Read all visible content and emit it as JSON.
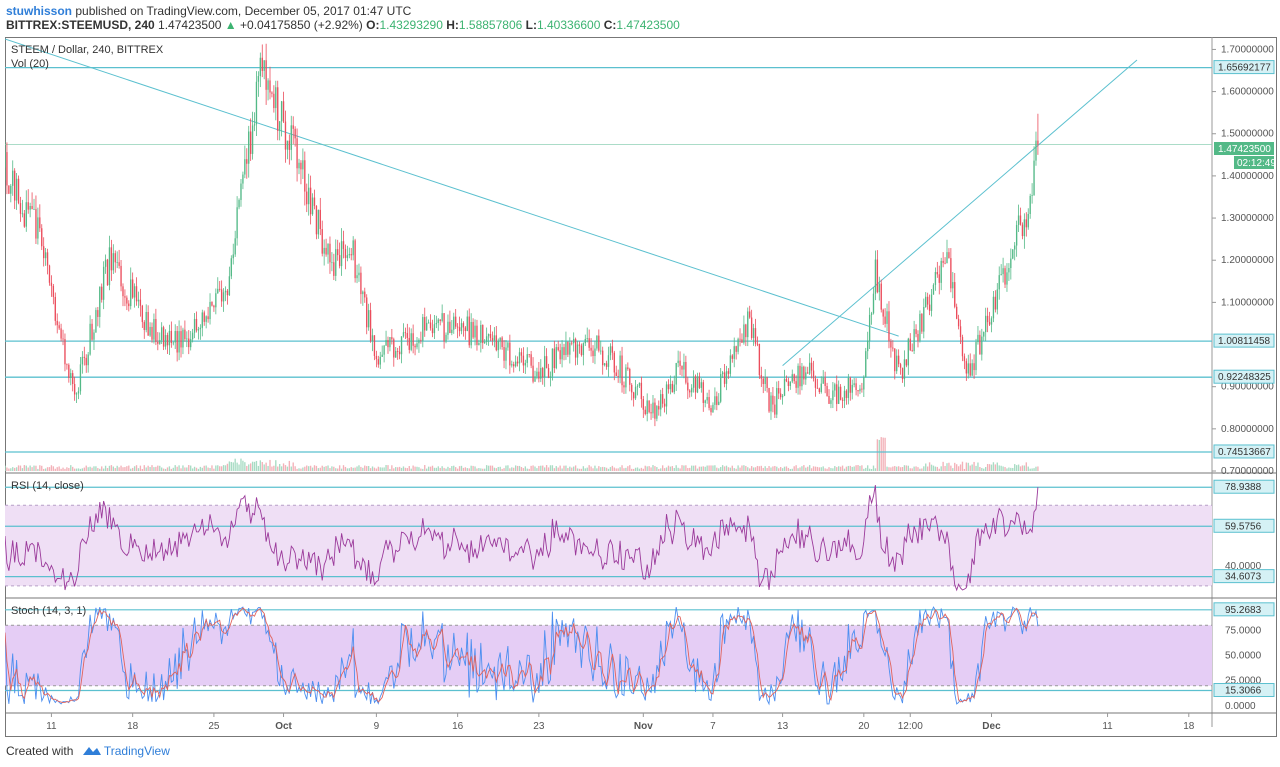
{
  "header": {
    "author": "stuwhisson",
    "published": "published on TradingView.com, December 05, 2017 01:47 UTC",
    "symbol": "BITTREX:STEEMUSD, 240",
    "last": "1.47423500",
    "change_arrow": "▲",
    "change": "+0.04175850 (+2.92%)",
    "o_label": "O:",
    "o": "1.43293290",
    "h_label": "H:",
    "h": "1.58857806",
    "l_label": "L:",
    "l": "1.40336600",
    "c_label": "C:",
    "c": "1.47423500"
  },
  "price_pane": {
    "title": "STEEM / Dollar, 240, BITTREX",
    "vol_label": "Vol (20)",
    "current_price": "1.47423500",
    "countdown": "02:12:49"
  },
  "rsi_pane": {
    "title": "RSI (14, close)"
  },
  "stoch_pane": {
    "title": "Stoch (14, 3, 1)"
  },
  "colors": {
    "up": "#53b987",
    "down": "#eb4d5c",
    "line": "#5bc0cf",
    "rsi": "#9b3a9b",
    "rsi_band": "#efdff5",
    "stoch_band": "#e5cdf5",
    "stoch_k": "#4d8ff0",
    "stoch_d": "#e0635d"
  },
  "footer": {
    "created_with": "Created with",
    "brand": "TradingView"
  },
  "chart_data": [
    {
      "type": "candlestick",
      "title": "STEEM / Dollar, 240, BITTREX",
      "x_tick_labels": [
        "11",
        "18",
        "25",
        "Oct",
        "9",
        "16",
        "23",
        "Nov",
        "7",
        "13",
        "20",
        "12:00",
        "Dec",
        "11",
        "18"
      ],
      "y_tick_labels": [
        "1.70000000",
        "1.60000000",
        "1.50000000",
        "1.40000000",
        "1.30000000",
        "1.20000000",
        "1.10000000",
        "0.90000000",
        "0.80000000",
        "0.70000000"
      ],
      "ylim": [
        0.7,
        1.72
      ],
      "horizontal_levels": [
        {
          "value": 1.65692177,
          "label": "1.65692177"
        },
        {
          "value": 1.00811458,
          "label": "1.00811458"
        },
        {
          "value": 0.92248325,
          "label": "0.92248325"
        },
        {
          "value": 0.74513667,
          "label": "0.74513667"
        }
      ],
      "last_price": {
        "value": 1.474235,
        "label": "1.47423500"
      },
      "anchors": [
        {
          "date": "2017-09-07",
          "price": 1.42
        },
        {
          "date": "2017-09-10",
          "price": 1.25
        },
        {
          "date": "2017-09-13",
          "price": 0.87
        },
        {
          "date": "2017-09-16",
          "price": 1.2
        },
        {
          "date": "2017-09-20",
          "price": 1.02
        },
        {
          "date": "2017-09-22",
          "price": 1.0
        },
        {
          "date": "2017-09-26",
          "price": 1.12
        },
        {
          "date": "2017-09-29",
          "price": 1.65
        },
        {
          "date": "2017-10-02",
          "price": 1.45
        },
        {
          "date": "2017-10-05",
          "price": 1.2
        },
        {
          "date": "2017-10-07",
          "price": 1.22
        },
        {
          "date": "2017-10-09",
          "price": 0.97
        },
        {
          "date": "2017-10-13",
          "price": 1.03
        },
        {
          "date": "2017-10-16",
          "price": 1.05
        },
        {
          "date": "2017-10-19",
          "price": 1.0
        },
        {
          "date": "2017-10-23",
          "price": 0.93
        },
        {
          "date": "2017-10-26",
          "price": 1.0
        },
        {
          "date": "2017-10-29",
          "price": 0.98
        },
        {
          "date": "2017-11-02",
          "price": 0.83
        },
        {
          "date": "2017-11-04",
          "price": 0.94
        },
        {
          "date": "2017-11-07",
          "price": 0.86
        },
        {
          "date": "2017-11-10",
          "price": 1.06
        },
        {
          "date": "2017-11-12",
          "price": 0.85
        },
        {
          "date": "2017-11-15",
          "price": 0.95
        },
        {
          "date": "2017-11-17",
          "price": 0.88
        },
        {
          "date": "2017-11-20",
          "price": 0.91
        },
        {
          "date": "2017-11-21",
          "price": 1.17
        },
        {
          "date": "2017-11-23",
          "price": 0.93
        },
        {
          "date": "2017-11-25",
          "price": 1.05
        },
        {
          "date": "2017-11-27",
          "price": 1.22
        },
        {
          "date": "2017-11-29",
          "price": 0.93
        },
        {
          "date": "2017-12-02",
          "price": 1.15
        },
        {
          "date": "2017-12-04",
          "price": 1.32
        },
        {
          "date": "2017-12-05",
          "price": 1.47
        }
      ]
    },
    {
      "type": "line",
      "title": "RSI (14, close)",
      "y_tick_labels": [
        "40.0000"
      ],
      "ylim": [
        25,
        85
      ],
      "levels": [
        {
          "value": 78.9388,
          "label": "78.9388"
        },
        {
          "value": 59.5756,
          "label": "59.5756"
        },
        {
          "value": 34.6073,
          "label": "34.6073"
        }
      ],
      "band": [
        30,
        70
      ]
    },
    {
      "type": "line",
      "title": "Stoch (14, 3, 1)",
      "y_tick_labels": [
        "75.0000",
        "50.0000",
        "25.0000",
        "0.0000"
      ],
      "ylim": [
        -5,
        105
      ],
      "levels": [
        {
          "value": 95.2683,
          "label": "95.2683"
        },
        {
          "value": 15.3066,
          "label": "15.3066"
        }
      ],
      "band": [
        20,
        80
      ]
    }
  ]
}
